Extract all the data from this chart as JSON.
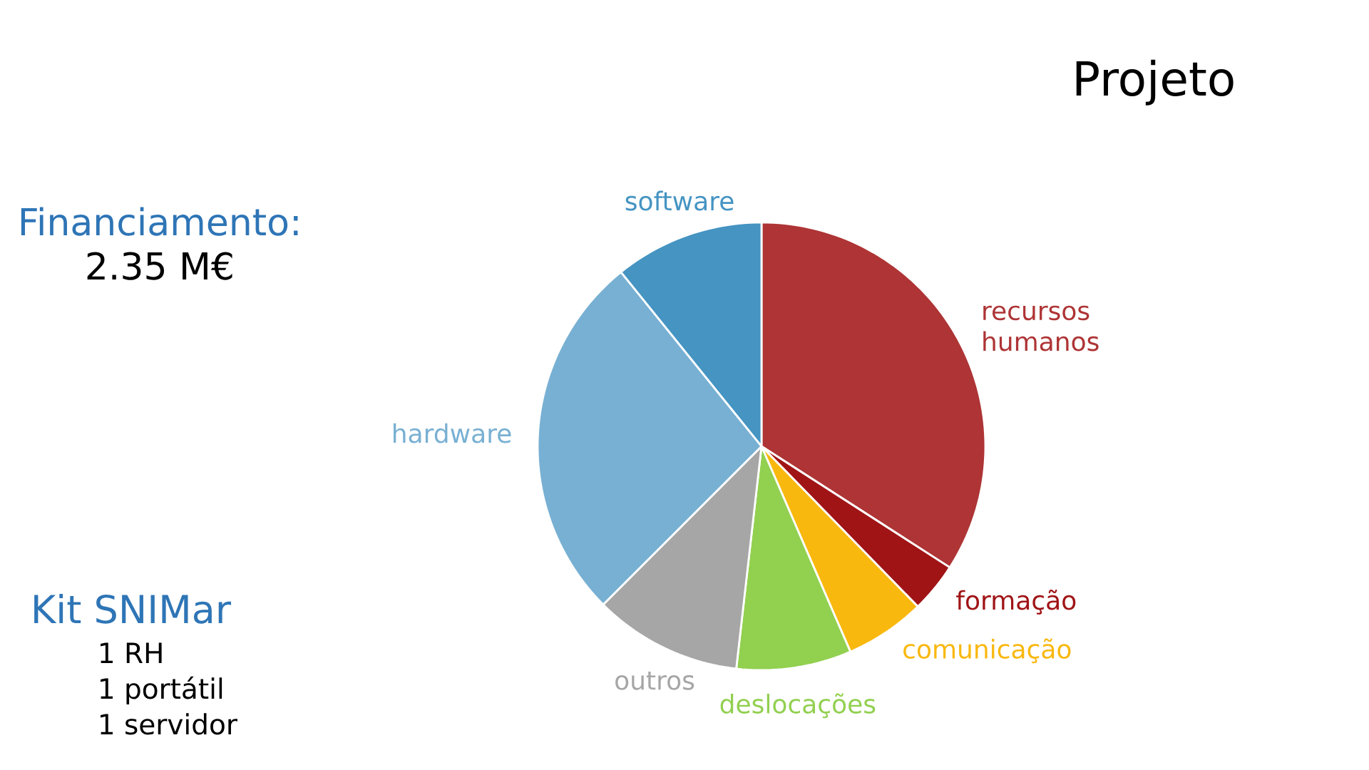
{
  "chart_data": {
    "type": "pie",
    "title": "Projeto",
    "categories": [
      "recursos humanos",
      "formação",
      "comunicação",
      "deslocações",
      "outros",
      "hardware",
      "software"
    ],
    "values": [
      34.1,
      3.6,
      5.8,
      8.3,
      10.7,
      26.7,
      10.8
    ],
    "colors": [
      "#ae3435",
      "#a01416",
      "#f9b80e",
      "#92d050",
      "#a6a6a6",
      "#78b0d3",
      "#4594c2"
    ],
    "annotations": [
      "Financiamento:",
      "2.35 M€",
      "Kit SNIMar",
      "1 RH",
      "1 portátil",
      "1 servidor"
    ]
  }
}
